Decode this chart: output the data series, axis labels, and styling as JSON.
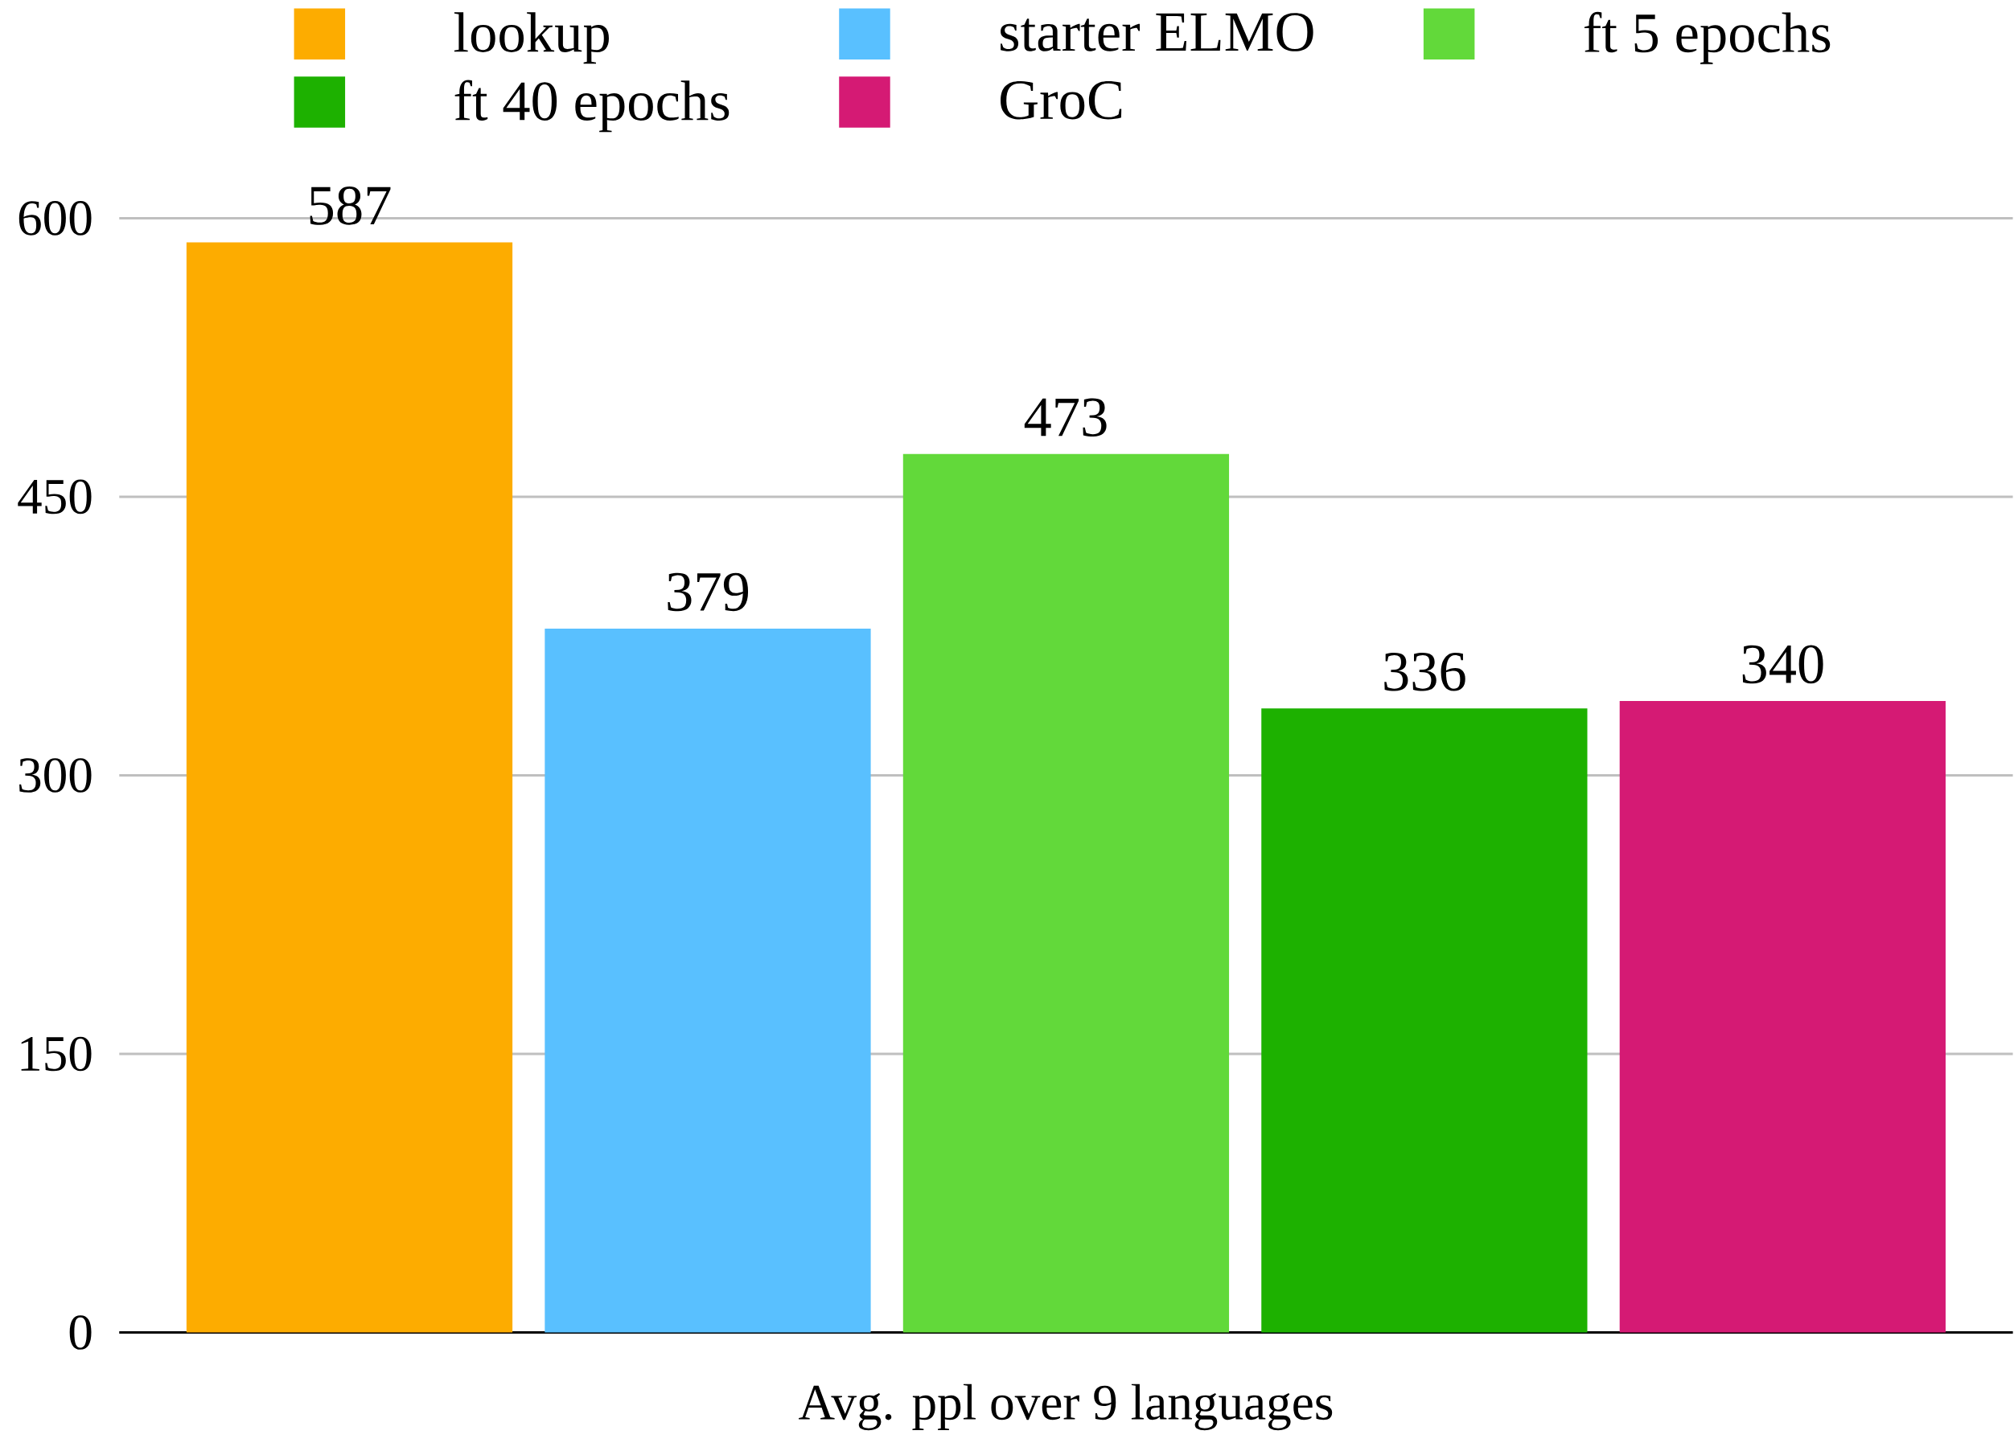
{
  "chart_data": {
    "type": "bar",
    "categories": [
      "Avg. ppl over 9 languages"
    ],
    "series": [
      {
        "name": "lookup",
        "color": "#fdac00",
        "values": [
          587
        ]
      },
      {
        "name": "starter ELMO",
        "color": "#59c0ff",
        "values": [
          379
        ]
      },
      {
        "name": "ft 5 epochs",
        "color": "#62d93a",
        "values": [
          473
        ]
      },
      {
        "name": "ft 40 epochs",
        "color": "#1db100",
        "values": [
          336
        ]
      },
      {
        "name": "GroC",
        "color": "#d51a74",
        "values": [
          340
        ]
      }
    ],
    "ylim": [
      0,
      600
    ],
    "yticks": [
      0,
      150,
      300,
      450,
      600
    ],
    "grid": "y",
    "legend": "top",
    "data_labels": true
  }
}
